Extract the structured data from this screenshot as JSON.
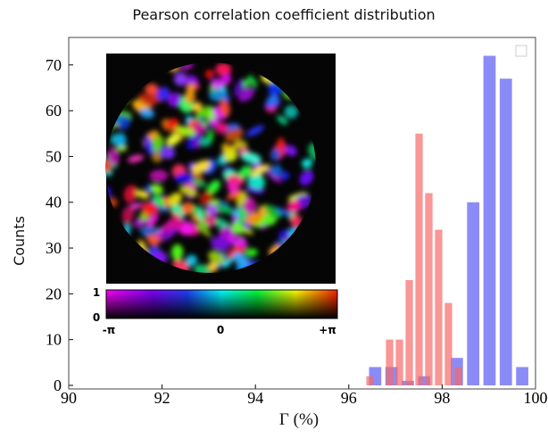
{
  "chart_data": {
    "type": "histogram",
    "title": "Pearson correlation coefficient distribution",
    "xlabel": "Γ (%)",
    "ylabel": "Counts",
    "xlim": [
      90,
      100
    ],
    "xticks": [
      90,
      92,
      94,
      96,
      98,
      100
    ],
    "ylim": [
      0,
      76
    ],
    "yticks": [
      0,
      10,
      20,
      30,
      40,
      50,
      60,
      70
    ],
    "series": [
      {
        "color": "#5a5af5",
        "bins": [
          96.39,
          96.74,
          97.09,
          97.44,
          97.79,
          98.14,
          98.49,
          98.84,
          99.19,
          99.54,
          99.89
        ],
        "values": [
          4,
          4,
          1,
          2,
          0,
          6,
          40,
          72,
          67,
          4
        ]
      },
      {
        "color": "#f76a6a",
        "bins": [
          96.35,
          96.56,
          96.77,
          96.98,
          97.19,
          97.4,
          97.61,
          97.82,
          98.03,
          98.24,
          98.45
        ],
        "values": [
          2,
          0,
          10,
          10,
          23,
          55,
          42,
          34,
          18,
          4
        ]
      }
    ],
    "inset": {
      "colorbar_amplitude_labels": [
        "1",
        "0"
      ],
      "colorbar_phase_labels": [
        "-π",
        "0",
        "+π"
      ]
    }
  }
}
